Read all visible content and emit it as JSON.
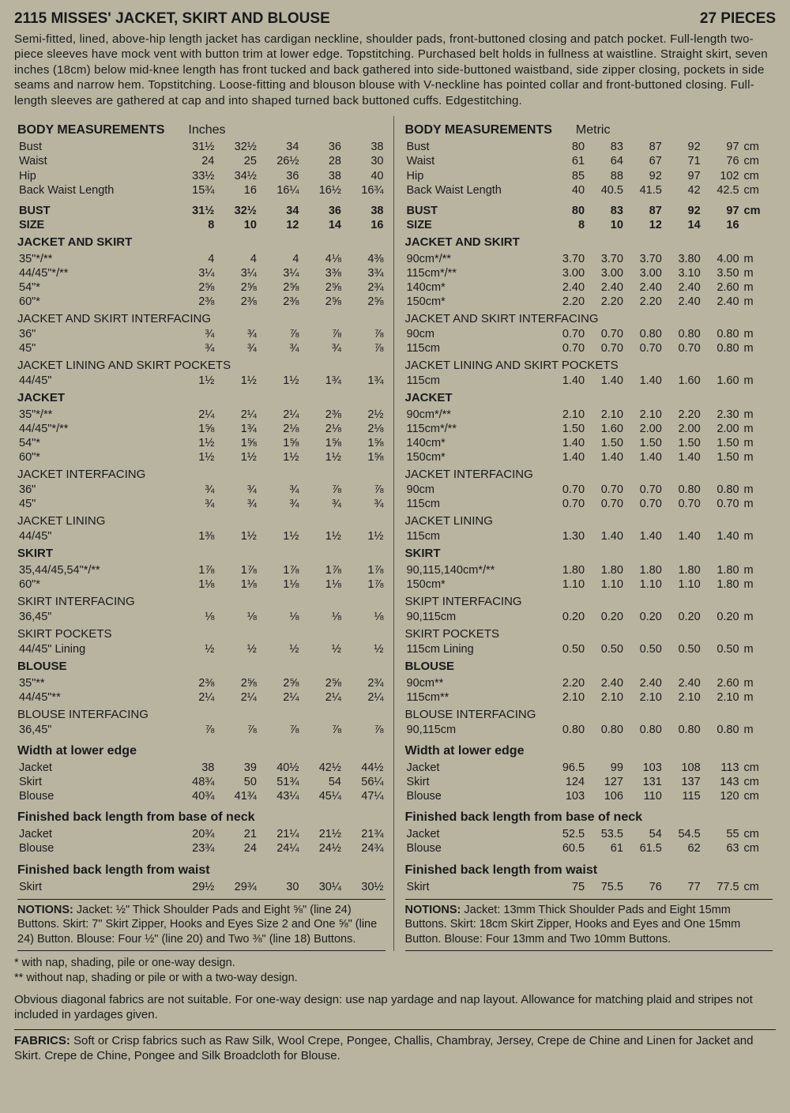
{
  "header": {
    "left": "2115 MISSES' JACKET, SKIRT AND BLOUSE",
    "right": "27 PIECES"
  },
  "description": "Semi-fitted, lined, above-hip length jacket has cardigan neckline, shoulder pads, front-buttoned closing and patch pocket. Full-length two-piece sleeves have mock vent with button trim at lower edge. Topstitching. Purchased belt holds in fullness at waistline. Straight skirt, seven inches (18cm) below mid-knee length has front tucked and back gathered into side-buttoned waistband, side zipper closing, pockets in side seams and narrow hem. Topstitching. Loose-fitting and blouson blouse with V-neckline has pointed collar and front-buttoned closing. Full-length sleeves are gathered at cap and into shaped turned back buttoned cuffs. Edgestitching.",
  "inches": {
    "title": "BODY MEASUREMENTS",
    "unit_label": "Inches",
    "body": [
      {
        "label": "Bust",
        "v": [
          "31½",
          "32½",
          "34",
          "36",
          "38"
        ]
      },
      {
        "label": "Waist",
        "v": [
          "24",
          "25",
          "26½",
          "28",
          "30"
        ]
      },
      {
        "label": "Hip",
        "v": [
          "33½",
          "34½",
          "36",
          "38",
          "40"
        ]
      },
      {
        "label": "Back Waist Length",
        "v": [
          "15¾",
          "16",
          "16¼",
          "16½",
          "16¾"
        ]
      }
    ],
    "bust_size": [
      {
        "label": "BUST",
        "v": [
          "31½",
          "32½",
          "34",
          "36",
          "38"
        ]
      },
      {
        "label": "SIZE",
        "v": [
          "8",
          "10",
          "12",
          "14",
          "16"
        ]
      }
    ],
    "sections": [
      {
        "head": "JACKET AND SKIRT",
        "rows": [
          {
            "label": "35\"*/**",
            "v": [
              "4",
              "4",
              "4",
              "4⅛",
              "4⅜"
            ]
          },
          {
            "label": "44/45\"*/**",
            "v": [
              "3¼",
              "3¼",
              "3¼",
              "3⅜",
              "3¾"
            ]
          },
          {
            "label": "54\"*",
            "v": [
              "2⅝",
              "2⅝",
              "2⅝",
              "2⅝",
              "2¾"
            ]
          },
          {
            "label": "60\"*",
            "v": [
              "2⅜",
              "2⅜",
              "2⅜",
              "2⅝",
              "2⅝"
            ]
          }
        ]
      },
      {
        "head": "JACKET AND SKIRT INTERFACING",
        "rows": [
          {
            "label": "36\"",
            "v": [
              "¾",
              "¾",
              "⅞",
              "⅞",
              "⅞"
            ]
          },
          {
            "label": "45\"",
            "v": [
              "¾",
              "¾",
              "¾",
              "¾",
              "⅞"
            ]
          }
        ]
      },
      {
        "head": "JACKET LINING AND SKIRT POCKETS",
        "rows": [
          {
            "label": "44/45\"",
            "v": [
              "1½",
              "1½",
              "1½",
              "1¾",
              "1¾"
            ]
          }
        ]
      },
      {
        "head": "JACKET",
        "rows": [
          {
            "label": "35\"*/**",
            "v": [
              "2¼",
              "2¼",
              "2¼",
              "2⅜",
              "2½"
            ]
          },
          {
            "label": "44/45\"*/**",
            "v": [
              "1⅝",
              "1¾",
              "2⅛",
              "2⅛",
              "2⅛"
            ]
          },
          {
            "label": "54\"*",
            "v": [
              "1½",
              "1⅝",
              "1⅝",
              "1⅝",
              "1⅝"
            ]
          },
          {
            "label": "60\"*",
            "v": [
              "1½",
              "1½",
              "1½",
              "1½",
              "1⅝"
            ]
          }
        ]
      },
      {
        "head": "JACKET INTERFACING",
        "rows": [
          {
            "label": "36\"",
            "v": [
              "¾",
              "¾",
              "¾",
              "⅞",
              "⅞"
            ]
          },
          {
            "label": "45\"",
            "v": [
              "¾",
              "¾",
              "¾",
              "¾",
              "¾"
            ]
          }
        ]
      },
      {
        "head": "JACKET LINING",
        "rows": [
          {
            "label": "44/45\"",
            "v": [
              "1⅜",
              "1½",
              "1½",
              "1½",
              "1½"
            ]
          }
        ]
      },
      {
        "head": "SKIRT",
        "rows": [
          {
            "label": "35,44/45,54\"*/**",
            "v": [
              "1⅞",
              "1⅞",
              "1⅞",
              "1⅞",
              "1⅞"
            ]
          },
          {
            "label": "60\"*",
            "v": [
              "1⅛",
              "1⅛",
              "1⅛",
              "1⅛",
              "1⅞"
            ]
          }
        ]
      },
      {
        "head": "SKIRT INTERFACING",
        "rows": [
          {
            "label": "36,45\"",
            "v": [
              "⅛",
              "⅛",
              "⅛",
              "⅛",
              "⅛"
            ]
          }
        ]
      },
      {
        "head": "SKIRT POCKETS",
        "rows": [
          {
            "label": "44/45\" Lining",
            "v": [
              "½",
              "½",
              "½",
              "½",
              "½"
            ]
          }
        ]
      },
      {
        "head": "BLOUSE",
        "rows": [
          {
            "label": "35\"**",
            "v": [
              "2⅜",
              "2⅝",
              "2⅝",
              "2⅝",
              "2¾"
            ]
          },
          {
            "label": "44/45\"**",
            "v": [
              "2¼",
              "2¼",
              "2¼",
              "2¼",
              "2¼"
            ]
          }
        ]
      },
      {
        "head": "BLOUSE INTERFACING",
        "rows": [
          {
            "label": "36,45\"",
            "v": [
              "⅞",
              "⅞",
              "⅞",
              "⅞",
              "⅞"
            ]
          }
        ]
      }
    ],
    "finished": [
      {
        "head": "Width at lower edge",
        "rows": [
          {
            "label": "Jacket",
            "v": [
              "38",
              "39",
              "40½",
              "42½",
              "44½"
            ]
          },
          {
            "label": "Skirt",
            "v": [
              "48¾",
              "50",
              "51¾",
              "54",
              "56¼"
            ]
          },
          {
            "label": "Blouse",
            "v": [
              "40¾",
              "41¾",
              "43¼",
              "45¼",
              "47¼"
            ]
          }
        ]
      },
      {
        "head": "Finished back length from base of neck",
        "rows": [
          {
            "label": "Jacket",
            "v": [
              "20¾",
              "21",
              "21¼",
              "21½",
              "21¾"
            ]
          },
          {
            "label": "Blouse",
            "v": [
              "23¾",
              "24",
              "24¼",
              "24½",
              "24¾"
            ]
          }
        ]
      },
      {
        "head": "Finished back length from waist",
        "rows": [
          {
            "label": "Skirt",
            "v": [
              "29½",
              "29¾",
              "30",
              "30¼",
              "30½"
            ]
          }
        ]
      }
    ],
    "notions": "NOTIONS: Jacket: ½\" Thick Shoulder Pads and Eight ⅝\" (line 24) Buttons. Skirt: 7\" Skirt Zipper, Hooks and Eyes Size 2 and One ⅝\" (line 24) Button. Blouse: Four ½\" (line 20) and Two ⅜\" (line 18) Buttons."
  },
  "metric": {
    "title": "BODY MEASUREMENTS",
    "unit_label": "Metric",
    "body": [
      {
        "label": "Bust",
        "v": [
          "80",
          "83",
          "87",
          "92",
          "97"
        ],
        "u": "cm"
      },
      {
        "label": "Waist",
        "v": [
          "61",
          "64",
          "67",
          "71",
          "76"
        ],
        "u": "cm"
      },
      {
        "label": "Hip",
        "v": [
          "85",
          "88",
          "92",
          "97",
          "102"
        ],
        "u": "cm"
      },
      {
        "label": "Back Waist Length",
        "v": [
          "40",
          "40.5",
          "41.5",
          "42",
          "42.5"
        ],
        "u": "cm"
      }
    ],
    "bust_size": [
      {
        "label": "BUST",
        "v": [
          "80",
          "83",
          "87",
          "92",
          "97"
        ],
        "u": "cm"
      },
      {
        "label": "SIZE",
        "v": [
          "8",
          "10",
          "12",
          "14",
          "16"
        ],
        "u": ""
      }
    ],
    "sections": [
      {
        "head": "JACKET AND SKIRT",
        "rows": [
          {
            "label": "90cm*/**",
            "v": [
              "3.70",
              "3.70",
              "3.70",
              "3.80",
              "4.00"
            ],
            "u": "m"
          },
          {
            "label": "115cm*/**",
            "v": [
              "3.00",
              "3.00",
              "3.00",
              "3.10",
              "3.50"
            ],
            "u": "m"
          },
          {
            "label": "140cm*",
            "v": [
              "2.40",
              "2.40",
              "2.40",
              "2.40",
              "2.60"
            ],
            "u": "m"
          },
          {
            "label": "150cm*",
            "v": [
              "2.20",
              "2.20",
              "2.20",
              "2.40",
              "2.40"
            ],
            "u": "m"
          }
        ]
      },
      {
        "head": "JACKET AND SKIRT INTERFACING",
        "rows": [
          {
            "label": "90cm",
            "v": [
              "0.70",
              "0.70",
              "0.80",
              "0.80",
              "0.80"
            ],
            "u": "m"
          },
          {
            "label": "115cm",
            "v": [
              "0.70",
              "0.70",
              "0.70",
              "0.70",
              "0.80"
            ],
            "u": "m"
          }
        ]
      },
      {
        "head": "JACKET LINING AND SKIRT POCKETS",
        "rows": [
          {
            "label": "115cm",
            "v": [
              "1.40",
              "1.40",
              "1.40",
              "1.60",
              "1.60"
            ],
            "u": "m"
          }
        ]
      },
      {
        "head": "JACKET",
        "rows": [
          {
            "label": "90cm*/**",
            "v": [
              "2.10",
              "2.10",
              "2.10",
              "2.20",
              "2.30"
            ],
            "u": "m"
          },
          {
            "label": "115cm*/**",
            "v": [
              "1.50",
              "1.60",
              "2.00",
              "2.00",
              "2.00"
            ],
            "u": "m"
          },
          {
            "label": "140cm*",
            "v": [
              "1.40",
              "1.50",
              "1.50",
              "1.50",
              "1.50"
            ],
            "u": "m"
          },
          {
            "label": "150cm*",
            "v": [
              "1.40",
              "1.40",
              "1.40",
              "1.40",
              "1.50"
            ],
            "u": "m"
          }
        ]
      },
      {
        "head": "JACKET INTERFACING",
        "rows": [
          {
            "label": "90cm",
            "v": [
              "0.70",
              "0.70",
              "0.70",
              "0.80",
              "0.80"
            ],
            "u": "m"
          },
          {
            "label": "115cm",
            "v": [
              "0.70",
              "0.70",
              "0.70",
              "0.70",
              "0.70"
            ],
            "u": "m"
          }
        ]
      },
      {
        "head": "JACKET LINING",
        "rows": [
          {
            "label": "115cm",
            "v": [
              "1.30",
              "1.40",
              "1.40",
              "1.40",
              "1.40"
            ],
            "u": "m"
          }
        ]
      },
      {
        "head": "SKIRT",
        "rows": [
          {
            "label": "90,115,140cm*/**",
            "v": [
              "1.80",
              "1.80",
              "1.80",
              "1.80",
              "1.80"
            ],
            "u": "m"
          },
          {
            "label": "150cm*",
            "v": [
              "1.10",
              "1.10",
              "1.10",
              "1.10",
              "1.80"
            ],
            "u": "m"
          }
        ]
      },
      {
        "head": "SKIPT INTERFACING",
        "rows": [
          {
            "label": "90,115cm",
            "v": [
              "0.20",
              "0.20",
              "0.20",
              "0.20",
              "0.20"
            ],
            "u": "m"
          }
        ]
      },
      {
        "head": "SKIRT POCKETS",
        "rows": [
          {
            "label": "115cm Lining",
            "v": [
              "0.50",
              "0.50",
              "0.50",
              "0.50",
              "0.50"
            ],
            "u": "m"
          }
        ]
      },
      {
        "head": "BLOUSE",
        "rows": [
          {
            "label": "90cm**",
            "v": [
              "2.20",
              "2.40",
              "2.40",
              "2.40",
              "2.60"
            ],
            "u": "m"
          },
          {
            "label": "115cm**",
            "v": [
              "2.10",
              "2.10",
              "2.10",
              "2.10",
              "2.10"
            ],
            "u": "m"
          }
        ]
      },
      {
        "head": "BLOUSE INTERFACING",
        "rows": [
          {
            "label": "90,115cm",
            "v": [
              "0.80",
              "0.80",
              "0.80",
              "0.80",
              "0.80"
            ],
            "u": "m"
          }
        ]
      }
    ],
    "finished": [
      {
        "head": "Width at lower edge",
        "rows": [
          {
            "label": "Jacket",
            "v": [
              "96.5",
              "99",
              "103",
              "108",
              "113"
            ],
            "u": "cm"
          },
          {
            "label": "Skirt",
            "v": [
              "124",
              "127",
              "131",
              "137",
              "143"
            ],
            "u": "cm"
          },
          {
            "label": "Blouse",
            "v": [
              "103",
              "106",
              "110",
              "115",
              "120"
            ],
            "u": "cm"
          }
        ]
      },
      {
        "head": "Finished back length from base of neck",
        "rows": [
          {
            "label": "Jacket",
            "v": [
              "52.5",
              "53.5",
              "54",
              "54.5",
              "55"
            ],
            "u": "cm"
          },
          {
            "label": "Blouse",
            "v": [
              "60.5",
              "61",
              "61.5",
              "62",
              "63"
            ],
            "u": "cm"
          }
        ]
      },
      {
        "head": "Finished back length from waist",
        "rows": [
          {
            "label": "Skirt",
            "v": [
              "75",
              "75.5",
              "76",
              "77",
              "77.5"
            ],
            "u": "cm"
          }
        ]
      }
    ],
    "notions": "NOTIONS: Jacket: 13mm Thick Shoulder Pads and Eight 15mm Buttons. Skirt: 18cm Skirt Zipper, Hooks and Eyes and One 15mm Button. Blouse: Four 13mm and Two 10mm Buttons."
  },
  "footnotes": [
    "* with nap, shading, pile or one-way design.",
    "** without nap, shading or pile or with a two-way design."
  ],
  "notes": "Obvious diagonal fabrics are not suitable. For one-way design: use nap yardage and nap layout. Allowance for matching plaid and stripes not included in yardages given.",
  "fabrics": "FABRICS: Soft or Crisp fabrics such as Raw Silk, Wool Crepe, Pongee, Challis, Chambray, Jersey, Crepe de Chine and Linen for Jacket and Skirt. Crepe de Chine, Pongee and Silk Broadcloth for Blouse."
}
